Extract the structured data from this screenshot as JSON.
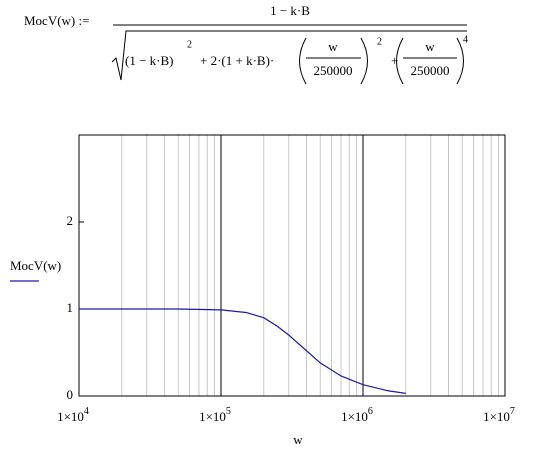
{
  "formula": {
    "lhs": "MocV(w) :=",
    "numerator": "1 − k·B",
    "term1": "(1 − k·B)",
    "exp1": "2",
    "term2": "+ 2·(1 + k·B)·",
    "w1": "w",
    "den1": "250000",
    "exp2": "2",
    "plus": "+",
    "w2": "w",
    "den2": "250000",
    "exp3": "4"
  },
  "chart_data": {
    "type": "line",
    "x_label": "w",
    "x": [
      10000,
      20000,
      50000,
      100000,
      150000,
      200000,
      250000,
      300000,
      400000,
      500000,
      700000,
      1000000,
      1500000,
      2000000
    ],
    "series": [
      {
        "name": "MocV(w)",
        "color": "#1a1aa6",
        "values": [
          1,
          1,
          1,
          0.99,
          0.96,
          0.9,
          0.8,
          0.7,
          0.52,
          0.38,
          0.23,
          0.13,
          0.06,
          0.03
        ]
      }
    ],
    "xlim": [
      10000,
      10000000
    ],
    "xscale": "log",
    "minor_grid": true,
    "xticks": [
      {
        "value": 10000,
        "label": "1×10",
        "power": "4"
      },
      {
        "value": 100000,
        "label": "1×10",
        "power": "5"
      },
      {
        "value": 1000000,
        "label": "1×10",
        "power": "6"
      },
      {
        "value": 10000000,
        "label": "1×10",
        "power": "7"
      }
    ],
    "ylim": [
      0,
      3
    ],
    "yticks": [
      0,
      1,
      2
    ]
  }
}
